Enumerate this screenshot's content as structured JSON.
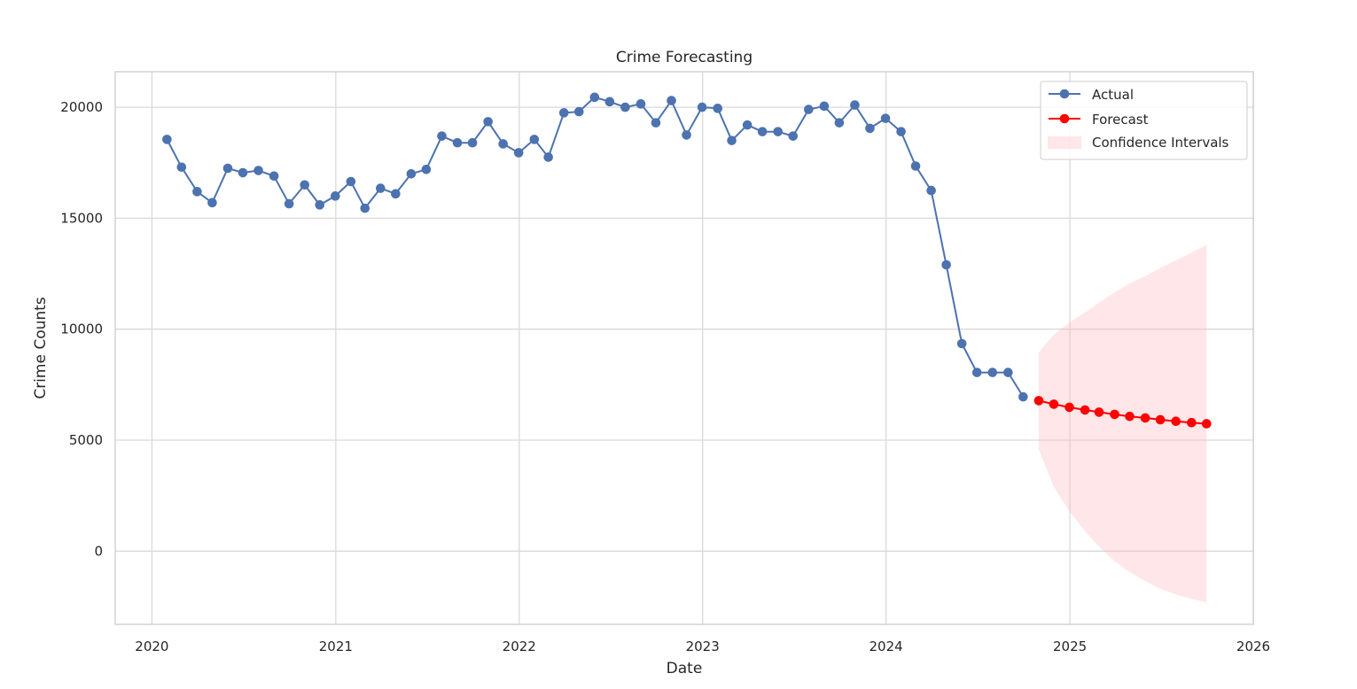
{
  "chart_data": {
    "type": "line",
    "title": "Crime Forecasting",
    "xlabel": "Date",
    "ylabel": "Crime Counts",
    "xlim": [
      "2019-10-20",
      "2026-01-01"
    ],
    "ylim": [
      -3300,
      21600
    ],
    "x_ticks": [
      "2020",
      "2021",
      "2022",
      "2023",
      "2024",
      "2025",
      "2026"
    ],
    "y_ticks": [
      0,
      5000,
      10000,
      15000,
      20000
    ],
    "grid": true,
    "legend_position": "top-right",
    "series": [
      {
        "name": "Actual",
        "color": "#4c72b0",
        "x": [
          "2020-01-31",
          "2020-02-29",
          "2020-03-31",
          "2020-04-30",
          "2020-05-31",
          "2020-06-30",
          "2020-07-31",
          "2020-08-31",
          "2020-09-30",
          "2020-10-31",
          "2020-11-30",
          "2020-12-31",
          "2021-01-31",
          "2021-02-28",
          "2021-03-31",
          "2021-04-30",
          "2021-05-31",
          "2021-06-30",
          "2021-07-31",
          "2021-08-31",
          "2021-09-30",
          "2021-10-31",
          "2021-11-30",
          "2021-12-31",
          "2022-01-31",
          "2022-02-28",
          "2022-03-31",
          "2022-04-30",
          "2022-05-31",
          "2022-06-30",
          "2022-07-31",
          "2022-08-31",
          "2022-09-30",
          "2022-10-31",
          "2022-11-30",
          "2022-12-31",
          "2023-01-31",
          "2023-02-28",
          "2023-03-31",
          "2023-04-30",
          "2023-05-31",
          "2023-06-30",
          "2023-07-31",
          "2023-08-31",
          "2023-09-30",
          "2023-10-31",
          "2023-11-30",
          "2023-12-31",
          "2024-01-31",
          "2024-02-29",
          "2024-03-31",
          "2024-04-30",
          "2024-05-31",
          "2024-06-30",
          "2024-07-31",
          "2024-08-31",
          "2024-09-30"
        ],
        "values": [
          18550,
          17300,
          16200,
          15700,
          17250,
          17050,
          17150,
          16900,
          15650,
          16500,
          15600,
          16000,
          16650,
          15450,
          16350,
          16100,
          17000,
          17200,
          18700,
          18400,
          18400,
          19350,
          18350,
          17950,
          18550,
          17750,
          19750,
          19800,
          20450,
          20250,
          20000,
          20150,
          19300,
          20300,
          18750,
          20000,
          19950,
          18500,
          19200,
          18900,
          18900,
          18700,
          19900,
          20050,
          19300,
          20100,
          19050,
          19500,
          18900,
          17350,
          16250,
          12900,
          9350,
          8050,
          8050,
          8050,
          6950
        ]
      },
      {
        "name": "Forecast",
        "color": "#ff0000",
        "x": [
          "2024-10-31",
          "2024-11-30",
          "2024-12-31",
          "2025-01-31",
          "2025-02-28",
          "2025-03-31",
          "2025-04-30",
          "2025-05-31",
          "2025-06-30",
          "2025-07-31",
          "2025-08-31",
          "2025-09-30"
        ],
        "values": [
          6780,
          6620,
          6480,
          6360,
          6260,
          6160,
          6070,
          6000,
          5920,
          5850,
          5790,
          5740
        ],
        "ci_lower": [
          4600,
          2900,
          1800,
          900,
          200,
          -450,
          -950,
          -1350,
          -1700,
          -1950,
          -2150,
          -2300
        ],
        "ci_upper": [
          8950,
          9750,
          10300,
          10750,
          11200,
          11650,
          12050,
          12400,
          12750,
          13100,
          13450,
          13800
        ]
      }
    ],
    "legend": [
      "Actual",
      "Forecast",
      "Confidence Intervals"
    ],
    "ci_color": "#ffb6bc"
  }
}
